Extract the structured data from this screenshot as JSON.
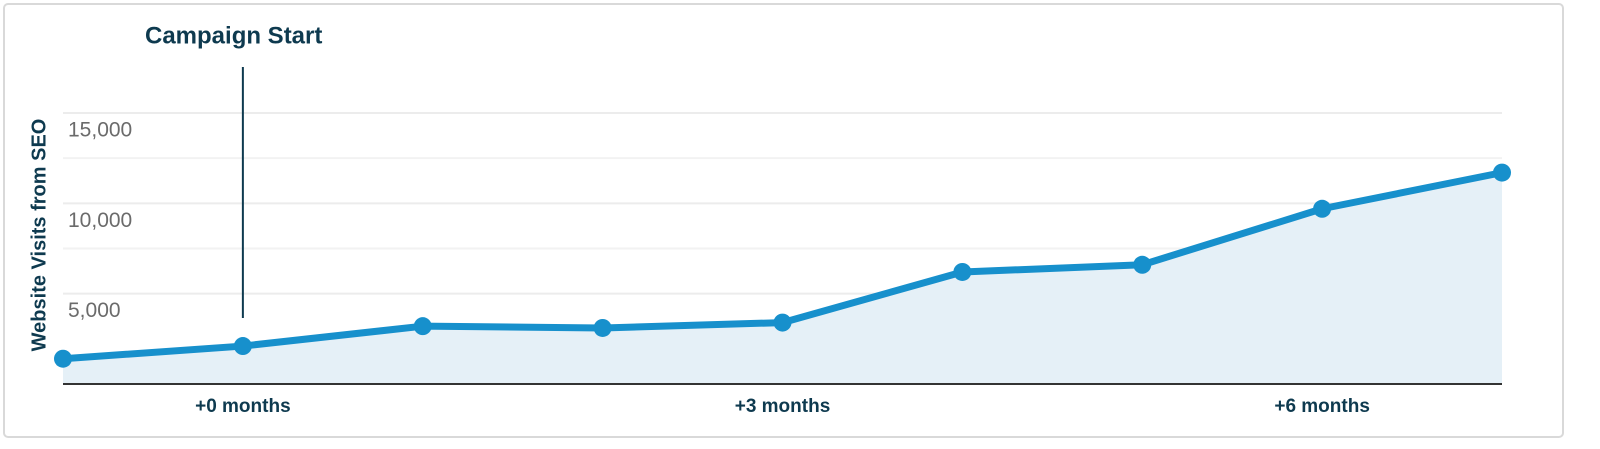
{
  "chart_data": {
    "type": "area",
    "y_label": "Website Visits from SEO",
    "categories": [
      null,
      "+0 months",
      null,
      null,
      "+3 months",
      null,
      null,
      "+6 months",
      null
    ],
    "values": [
      1400,
      2100,
      3200,
      3100,
      3400,
      6200,
      6600,
      9700,
      11700
    ],
    "color": "#1790cc",
    "fill_color": "#e5f0f7",
    "ylim": [
      0,
      15000
    ],
    "yticks": [
      {
        "value": 5000,
        "label": "5,000"
      },
      {
        "value": 10000,
        "label": "10,000"
      },
      {
        "value": 15000,
        "label": "15,000"
      }
    ],
    "minor_gridlines": [
      7500,
      12500
    ],
    "grid": true,
    "annotations": [
      {
        "text": "Campaign Start",
        "at": "+0 months"
      }
    ]
  }
}
